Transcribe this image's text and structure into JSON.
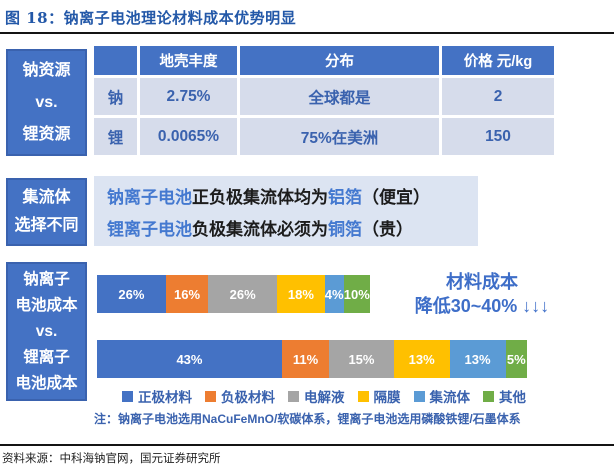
{
  "title": "图 18：钠离子电池理论材料成本优势明显",
  "source": "资料来源：中科海钠官网，国元证券研究所",
  "note": "注：钠离子电池选用NaCuFeMnO/软碳体系，锂离子电池选用磷酸铁锂/石墨体系",
  "colors": {
    "box_blue": "#4472C4",
    "row_bg": "#D6DCEB",
    "panel_bg": "#DCE4F2",
    "blue_text": "#3A62AE",
    "title_blue": "#2358A8"
  },
  "resource_table": {
    "sidebar": [
      "钠资源",
      "vs.",
      "锂资源"
    ],
    "headers": [
      "",
      "地壳丰度",
      "分布",
      "价格 元/kg"
    ],
    "rows": [
      [
        "钠",
        "2.75%",
        "全球都是",
        "2"
      ],
      [
        "锂",
        "0.0065%",
        "75%在美洲",
        "150"
      ]
    ]
  },
  "collector": {
    "sidebar": [
      "集流体",
      "选择不同"
    ],
    "lines": [
      {
        "parts": [
          {
            "text": "钠离子电池",
            "highlight": true
          },
          {
            "text": "正负极集流体均为",
            "highlight": false
          },
          {
            "text": "铝箔",
            "highlight": true
          },
          {
            "text": "（便宜）",
            "highlight": false
          }
        ]
      },
      {
        "parts": [
          {
            "text": "锂离子电池",
            "highlight": true
          },
          {
            "text": "负极集流体必须为",
            "highlight": false
          },
          {
            "text": "铜箔",
            "highlight": true
          },
          {
            "text": "（贵）",
            "highlight": false
          }
        ]
      }
    ]
  },
  "cost_section": {
    "sidebar": [
      "钠离子",
      "电池成本",
      "vs.",
      "锂离子",
      "电池成本"
    ],
    "annotation_lines": [
      "材料成本",
      "降低30~40% ↓↓↓"
    ]
  },
  "chart_data": {
    "type": "bar",
    "subtype": "horizontal-stacked",
    "unit": "%",
    "categories": [
      "钠离子电池成本",
      "锂离子电池成本"
    ],
    "segments": [
      "正极材料",
      "负极材料",
      "电解液",
      "隔膜",
      "集流体",
      "其他"
    ],
    "colors": [
      "#4472C4",
      "#ED7D31",
      "#A5A5A5",
      "#FFC000",
      "#5B9BD5",
      "#70AD47"
    ],
    "series": [
      {
        "name": "钠离子电池成本",
        "values": [
          26,
          16,
          26,
          18,
          4,
          10
        ]
      },
      {
        "name": "锂离子电池成本",
        "values": [
          43,
          11,
          15,
          13,
          13,
          5
        ]
      }
    ],
    "bar_length_ratio": [
      0.63,
      1.0
    ],
    "annotation": "材料成本 降低30~40% ↓↓↓",
    "legend_position": "bottom",
    "grid": false
  }
}
